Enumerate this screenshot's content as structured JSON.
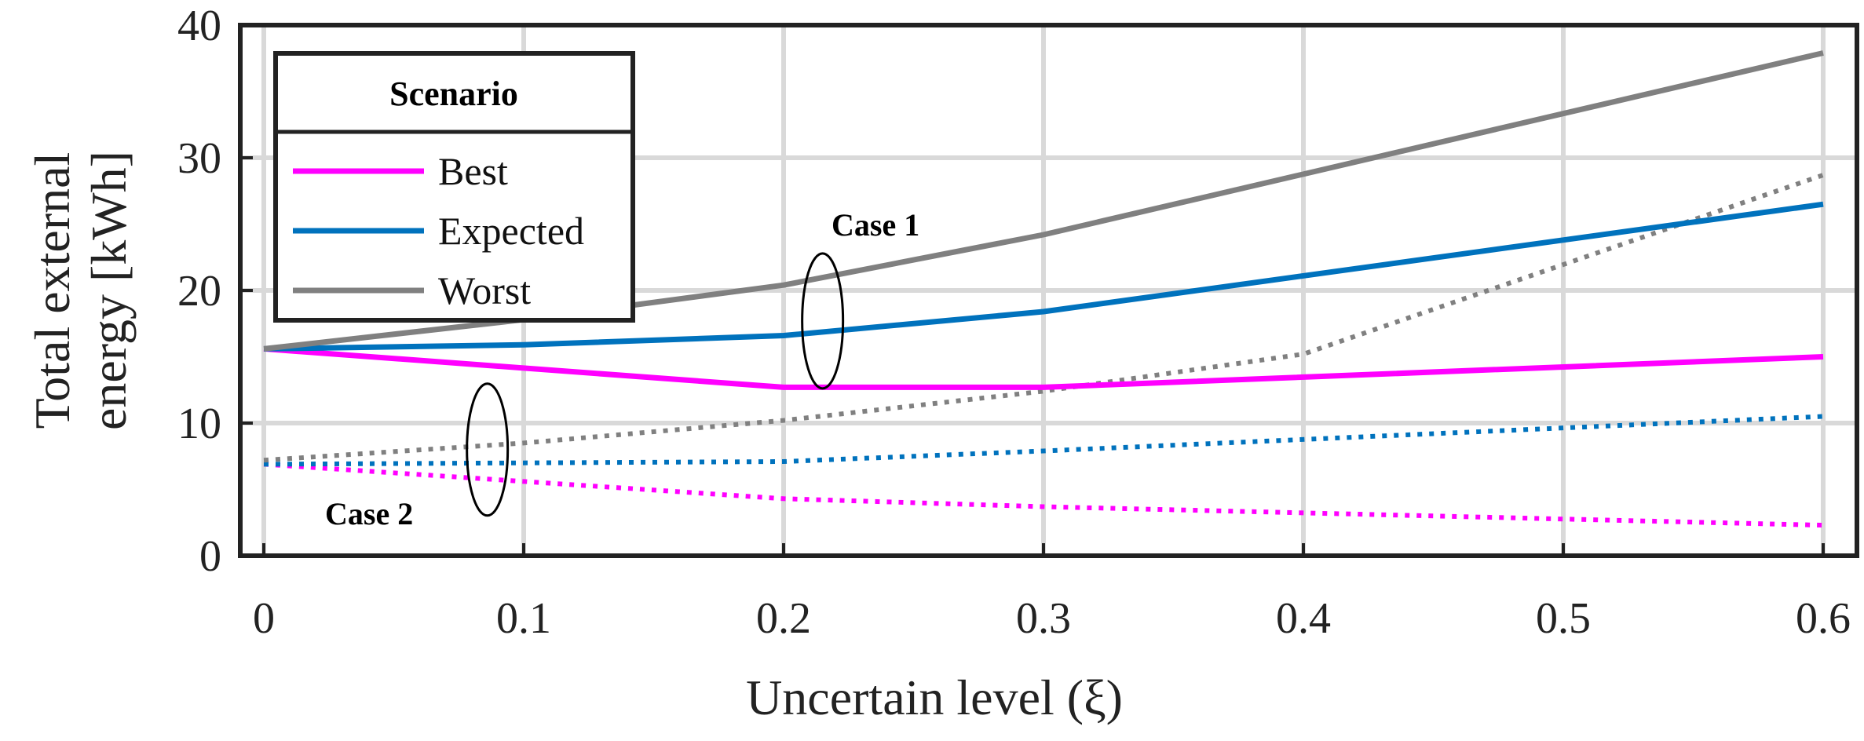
{
  "chart_data": {
    "type": "line",
    "title": "",
    "xlabel": "Uncertain level (ξ)",
    "ylabel": "Total external energy [kWh]",
    "ylabel_lines": [
      "Total external",
      "energy [kWh]"
    ],
    "xlim": [
      0,
      0.6
    ],
    "ylim": [
      0,
      40
    ],
    "xticks": [
      0,
      0.1,
      0.2,
      0.3,
      0.4,
      0.5,
      0.6
    ],
    "xtick_labels": [
      "0",
      "0.1",
      "0.2",
      "0.3",
      "0.4",
      "0.5",
      "0.6"
    ],
    "yticks": [
      0,
      10,
      20,
      30,
      40
    ],
    "ytick_labels": [
      "0",
      "10",
      "20",
      "30",
      "40"
    ],
    "grid": true,
    "legend": {
      "title": "Scenario",
      "position": "top-left",
      "entries": [
        "Best",
        "Expected",
        "Worst"
      ]
    },
    "series": [
      {
        "name": "Best",
        "case": "Case 1",
        "style": "solid",
        "color": "#ff00ff",
        "x": [
          0,
          0.2,
          0.3,
          0.6
        ],
        "values": [
          15.6,
          12.7,
          12.7,
          15.0
        ]
      },
      {
        "name": "Expected",
        "case": "Case 1",
        "style": "solid",
        "color": "#0072bd",
        "x": [
          0,
          0.1,
          0.2,
          0.3,
          0.6
        ],
        "values": [
          15.6,
          15.9,
          16.6,
          18.4,
          26.5
        ]
      },
      {
        "name": "Worst",
        "case": "Case 1",
        "style": "solid",
        "color": "#808080",
        "x": [
          0,
          0.1,
          0.2,
          0.3,
          0.6
        ],
        "values": [
          15.6,
          17.8,
          20.4,
          24.2,
          37.9
        ]
      },
      {
        "name": "Best",
        "case": "Case 2",
        "style": "dotted",
        "color": "#ff00ff",
        "x": [
          0,
          0.2,
          0.3,
          0.6
        ],
        "values": [
          6.9,
          4.3,
          3.7,
          2.3
        ]
      },
      {
        "name": "Expected",
        "case": "Case 2",
        "style": "dotted",
        "color": "#0072bd",
        "x": [
          0,
          0.2,
          0.3,
          0.6
        ],
        "values": [
          6.9,
          7.1,
          7.9,
          10.5
        ]
      },
      {
        "name": "Worst",
        "case": "Case 2",
        "style": "dotted",
        "color": "#808080",
        "x": [
          0,
          0.1,
          0.2,
          0.3,
          0.4,
          0.6
        ],
        "values": [
          7.2,
          8.5,
          10.2,
          12.4,
          15.2,
          28.7
        ]
      }
    ],
    "annotations": [
      {
        "label": "Case 1",
        "x": 0.215,
        "y": 17.7
      },
      {
        "label": "Case 2",
        "x": 0.086,
        "y": 8.0
      }
    ]
  }
}
